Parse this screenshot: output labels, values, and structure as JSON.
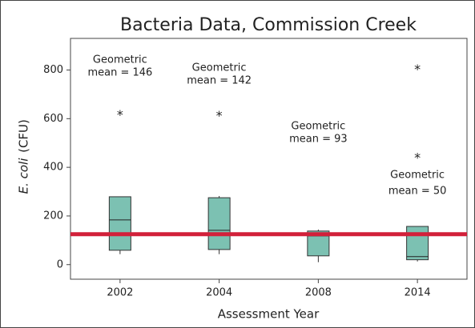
{
  "chart_data": {
    "type": "box",
    "title": "Bacteria Data, Commission Creek",
    "x_label": "Assessment Year",
    "y_label_italic": "E. coli",
    "y_label": "(CFU)",
    "categories": [
      "2002",
      "2004",
      "2008",
      "2014"
    ],
    "boxes": [
      {
        "whisker_low": 43,
        "q1": 59,
        "median": 184,
        "q3": 279,
        "whisker_high": 279,
        "outliers": [
          623
        ]
      },
      {
        "whisker_low": 43,
        "q1": 62,
        "median": 141,
        "q3": 275,
        "whisker_high": 282,
        "outliers": [
          620
        ]
      },
      {
        "whisker_low": 10,
        "q1": 36,
        "median": 118,
        "q3": 138,
        "whisker_high": 144,
        "outliers": []
      },
      {
        "whisker_low": 13,
        "q1": 20,
        "median": 33,
        "q3": 157,
        "whisker_high": 157,
        "outliers": [
          447,
          810
        ]
      }
    ],
    "box_color": "#7cc1b2",
    "reference_line": {
      "value": 125,
      "color": "#d2203a"
    },
    "annotations": [
      [
        "Geometric",
        "mean = 146"
      ],
      [
        "Geometric",
        "mean = 142"
      ],
      [
        "Geometric",
        "mean = 93"
      ],
      [
        "Geometric",
        "mean = 50"
      ]
    ],
    "ylim": [
      -60,
      930
    ],
    "yticks": [
      0,
      200,
      400,
      600,
      800
    ]
  }
}
